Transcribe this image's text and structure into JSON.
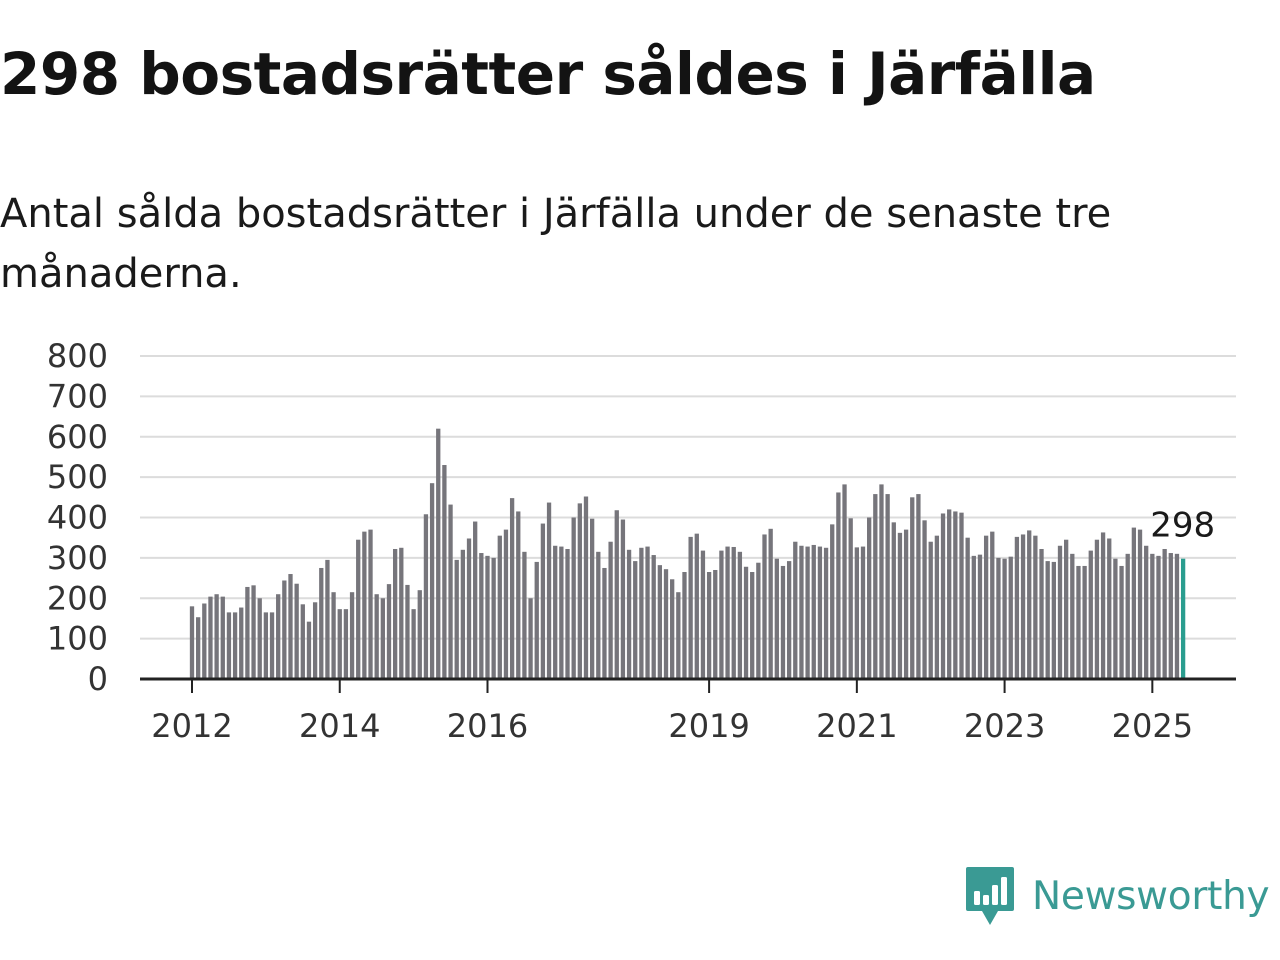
{
  "header": {
    "title": "298 bostadsrätter såldes i Järfälla",
    "subtitle": "Antal sålda bostadsrätter i Järfälla under de senaste tre månaderna."
  },
  "brand": {
    "name": "Newsworthy",
    "color": "#3a9a94",
    "icon": "newsworthy-logo-icon"
  },
  "chart_data": {
    "type": "bar",
    "ylim": [
      0,
      800
    ],
    "y_ticks": [
      0,
      100,
      200,
      300,
      400,
      500,
      600,
      700,
      800
    ],
    "x_ticks": [
      "2012",
      "2014",
      "2016",
      "2019",
      "2021",
      "2023",
      "2025"
    ],
    "grid": true,
    "bar_color": "#76757b",
    "highlight_color": "#2a9d8f",
    "last_value_label": "298",
    "series": [
      {
        "x": [
          "2012-01",
          "2012-02",
          "2012-03",
          "2012-04",
          "2012-05",
          "2012-06",
          "2012-07",
          "2012-08",
          "2012-09",
          "2012-10",
          "2012-11",
          "2012-12",
          "2013-01",
          "2013-02",
          "2013-03",
          "2013-04",
          "2013-05",
          "2013-06",
          "2013-07",
          "2013-08",
          "2013-09",
          "2013-10",
          "2013-11",
          "2013-12",
          "2014-01",
          "2014-02",
          "2014-03",
          "2014-04",
          "2014-05",
          "2014-06",
          "2014-07",
          "2014-08",
          "2014-09",
          "2014-10",
          "2014-11",
          "2014-12",
          "2015-01",
          "2015-02",
          "2015-03",
          "2015-04",
          "2015-05",
          "2015-06",
          "2015-07",
          "2015-08",
          "2015-09",
          "2015-10",
          "2015-11",
          "2015-12",
          "2016-01",
          "2016-02",
          "2016-03",
          "2016-04",
          "2016-05",
          "2016-06",
          "2016-07",
          "2016-08",
          "2016-09",
          "2016-10",
          "2016-11",
          "2016-12",
          "2017-01",
          "2017-02",
          "2017-03",
          "2017-04",
          "2017-05",
          "2017-06",
          "2017-07",
          "2017-08",
          "2017-09",
          "2017-10",
          "2017-11",
          "2017-12",
          "2018-01",
          "2018-02",
          "2018-03",
          "2018-04",
          "2018-05",
          "2018-06",
          "2018-07",
          "2018-08",
          "2018-09",
          "2018-10",
          "2018-11",
          "2018-12",
          "2019-01",
          "2019-02",
          "2019-03",
          "2019-04",
          "2019-05",
          "2019-06",
          "2019-07",
          "2019-08",
          "2019-09",
          "2019-10",
          "2019-11",
          "2019-12",
          "2020-01",
          "2020-02",
          "2020-03",
          "2020-04",
          "2020-05",
          "2020-06",
          "2020-07",
          "2020-08",
          "2020-09",
          "2020-10",
          "2020-11",
          "2020-12",
          "2021-01",
          "2021-02",
          "2021-03",
          "2021-04",
          "2021-05",
          "2021-06",
          "2021-07",
          "2021-08",
          "2021-09",
          "2021-10",
          "2021-11",
          "2021-12",
          "2022-01",
          "2022-02",
          "2022-03",
          "2022-04",
          "2022-05",
          "2022-06",
          "2022-07",
          "2022-08",
          "2022-09",
          "2022-10",
          "2022-11",
          "2022-12",
          "2023-01",
          "2023-02",
          "2023-03",
          "2023-04",
          "2023-05",
          "2023-06",
          "2023-07",
          "2023-08",
          "2023-09",
          "2023-10",
          "2023-11",
          "2023-12",
          "2024-01",
          "2024-02",
          "2024-03",
          "2024-04",
          "2024-05",
          "2024-06",
          "2024-07",
          "2024-08",
          "2024-09",
          "2024-10",
          "2024-11",
          "2024-12",
          "2025-01",
          "2025-02",
          "2025-03",
          "2025-04",
          "2025-05",
          "2025-06"
        ],
        "values": [
          180,
          153,
          187,
          204,
          210,
          204,
          165,
          165,
          177,
          228,
          232,
          200,
          165,
          165,
          210,
          244,
          260,
          236,
          185,
          142,
          190,
          275,
          295,
          215,
          173,
          173,
          215,
          345,
          365,
          370,
          210,
          200,
          235,
          322,
          325,
          233,
          173,
          220,
          408,
          485,
          620,
          530,
          432,
          295,
          320,
          348,
          390,
          312,
          305,
          300,
          355,
          370,
          448,
          415,
          315,
          200,
          290,
          385,
          437,
          330,
          328,
          322,
          400,
          435,
          452,
          397,
          315,
          275,
          340,
          418,
          395,
          320,
          292,
          325,
          328,
          307,
          282,
          272,
          247,
          215,
          265,
          352,
          360,
          318,
          265,
          270,
          318,
          328,
          327,
          315,
          278,
          265,
          288,
          358,
          372,
          298,
          280,
          292,
          340,
          330,
          328,
          332,
          328,
          325,
          383,
          462,
          482,
          398,
          326,
          328,
          400,
          458,
          482,
          458,
          388,
          362,
          370,
          450,
          458,
          393,
          340,
          355,
          410,
          420,
          415,
          412,
          350,
          305,
          308,
          355,
          365,
          300,
          298,
          303,
          352,
          358,
          368,
          355,
          322,
          292,
          290,
          330,
          345,
          310,
          280,
          280,
          318,
          345,
          363,
          348,
          298,
          280,
          310,
          375,
          370,
          330,
          310,
          305,
          322,
          312,
          310,
          298
        ]
      }
    ]
  }
}
